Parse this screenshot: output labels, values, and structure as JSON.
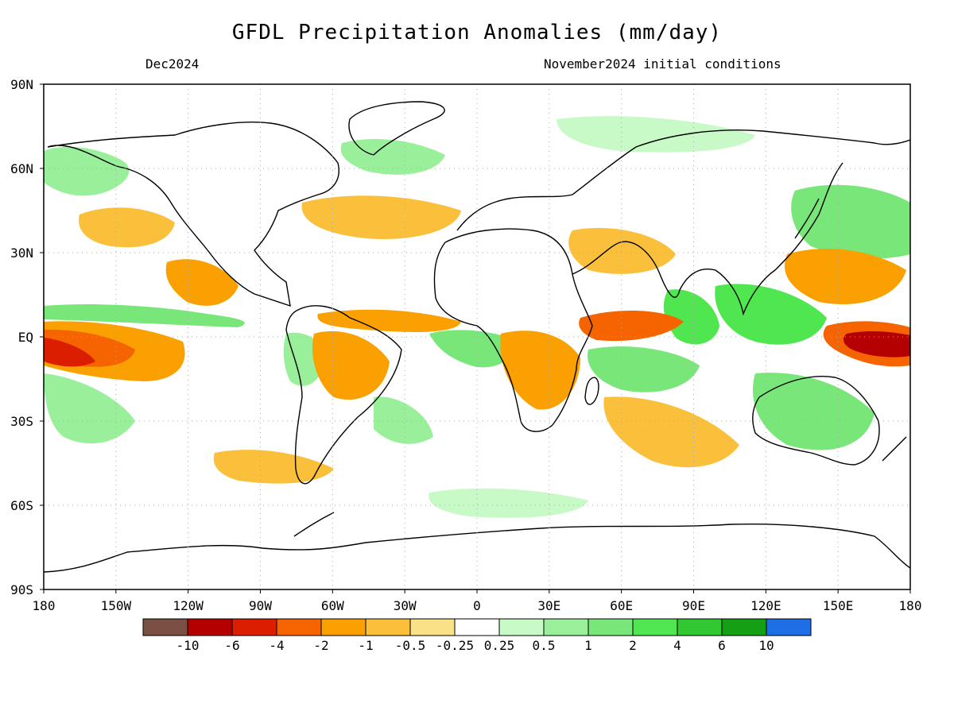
{
  "title": "GFDL Precipitation Anomalies (mm/day)",
  "valid_month": "Dec2024",
  "init_label": "November2024 initial conditions",
  "lat_ticks": [
    {
      "label": "90N",
      "value": 90
    },
    {
      "label": "60N",
      "value": 60
    },
    {
      "label": "30N",
      "value": 30
    },
    {
      "label": "EQ",
      "value": 0
    },
    {
      "label": "30S",
      "value": -30
    },
    {
      "label": "60S",
      "value": -60
    },
    {
      "label": "90S",
      "value": -90
    }
  ],
  "lon_ticks": [
    {
      "label": "180",
      "value": -180
    },
    {
      "label": "150W",
      "value": -150
    },
    {
      "label": "120W",
      "value": -120
    },
    {
      "label": "90W",
      "value": -90
    },
    {
      "label": "60W",
      "value": -60
    },
    {
      "label": "30W",
      "value": -30
    },
    {
      "label": "0",
      "value": 0
    },
    {
      "label": "30E",
      "value": 30
    },
    {
      "label": "60E",
      "value": 60
    },
    {
      "label": "90E",
      "value": 90
    },
    {
      "label": "120E",
      "value": 120
    },
    {
      "label": "150E",
      "value": 150
    },
    {
      "label": "180",
      "value": 180
    }
  ],
  "colorbar": {
    "colors": [
      "#7a5044",
      "#b40000",
      "#dc1e00",
      "#f56400",
      "#faa000",
      "#fac03c",
      "#fae186",
      "#ffffff",
      "#c8fac8",
      "#9af09a",
      "#78e678",
      "#50e650",
      "#32c832",
      "#14a014",
      "#1e6ee6"
    ],
    "labels": [
      "-10",
      "-6",
      "-4",
      "-2",
      "-1",
      "-0.5",
      "-0.25",
      "0.25",
      "0.5",
      "1",
      "2",
      "4",
      "6",
      "10"
    ]
  },
  "map_colors": {
    "land_outline": "#000000",
    "gridline": "#aaaaaa"
  }
}
